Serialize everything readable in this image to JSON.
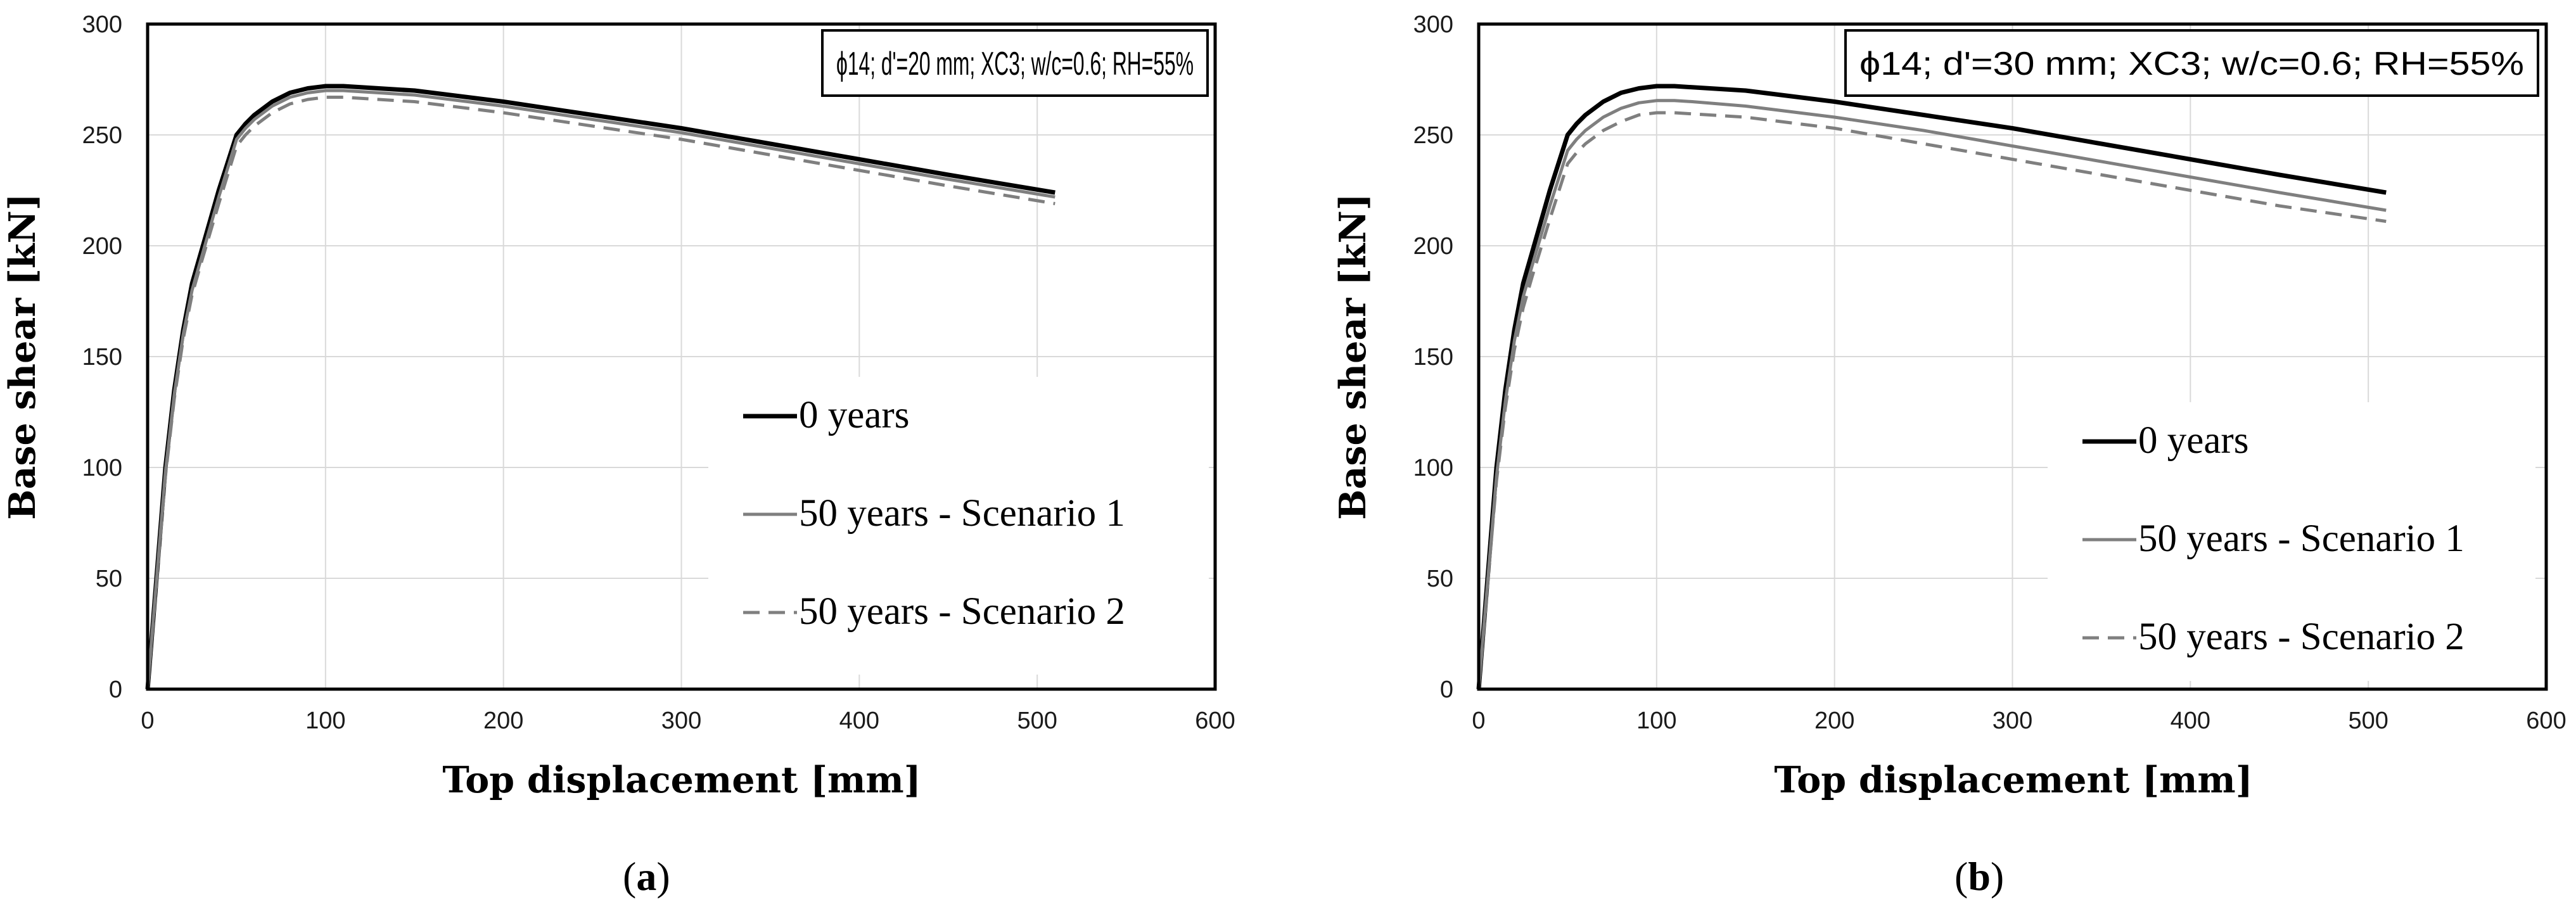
{
  "chart_data": [
    {
      "type": "line",
      "panel_label": "a",
      "annotation": "ϕ14; d'=20 mm; XC3; w/c=0.6; RH=55%",
      "xlabel": "Top displacement [mm]",
      "ylabel": "Base shear [kN]",
      "xlim": [
        0,
        600
      ],
      "ylim": [
        0,
        300
      ],
      "xticks": [
        0,
        100,
        200,
        300,
        400,
        500,
        600
      ],
      "yticks": [
        0,
        50,
        100,
        150,
        200,
        250,
        300
      ],
      "grid": true,
      "legend_position": "center-right",
      "series": [
        {
          "name": "0 years",
          "color": "#000000",
          "dash": "solid",
          "x": [
            0,
            5,
            10,
            15,
            20,
            25,
            30,
            40,
            50,
            55,
            60,
            70,
            80,
            90,
            100,
            110,
            120,
            150,
            200,
            250,
            300,
            350,
            400,
            450,
            510
          ],
          "y": [
            0,
            50,
            100,
            135,
            162,
            183,
            197,
            225,
            250,
            255,
            259,
            265,
            269,
            271,
            272,
            272,
            271.5,
            270,
            265,
            259,
            253,
            246,
            239,
            232,
            224
          ]
        },
        {
          "name": "50 years - Scenario 1",
          "color": "#7f7f7f",
          "dash": "solid",
          "x": [
            0,
            5,
            10,
            15,
            20,
            25,
            30,
            40,
            50,
            55,
            60,
            70,
            80,
            90,
            100,
            110,
            120,
            150,
            200,
            250,
            300,
            350,
            400,
            450,
            510
          ],
          "y": [
            0,
            49,
            98,
            133,
            160,
            180,
            194,
            222,
            248,
            253,
            257,
            263,
            267,
            269,
            270,
            270,
            269.5,
            268,
            263,
            257,
            251,
            244,
            237,
            230,
            222
          ]
        },
        {
          "name": "50 years - Scenario 2",
          "color": "#7f7f7f",
          "dash": "dashed",
          "x": [
            0,
            5,
            10,
            15,
            20,
            25,
            30,
            40,
            50,
            55,
            60,
            70,
            80,
            90,
            100,
            110,
            120,
            150,
            200,
            250,
            300,
            350,
            400,
            450,
            510
          ],
          "y": [
            0,
            48,
            96,
            131,
            158,
            178,
            192,
            219,
            245,
            250,
            254,
            260,
            264,
            266,
            267,
            267,
            266.5,
            265,
            260,
            254,
            248,
            241,
            234,
            227,
            219
          ]
        }
      ]
    },
    {
      "type": "line",
      "panel_label": "b",
      "annotation": "ϕ14; d'=30 mm; XC3; w/c=0.6; RH=55%",
      "xlabel": "Top displacement [mm]",
      "ylabel": "Base shear [kN]",
      "xlim": [
        0,
        600
      ],
      "ylim": [
        0,
        300
      ],
      "xticks": [
        0,
        100,
        200,
        300,
        400,
        500,
        600
      ],
      "yticks": [
        0,
        50,
        100,
        150,
        200,
        250,
        300
      ],
      "grid": true,
      "legend_position": "center-right",
      "series": [
        {
          "name": "0 years",
          "color": "#000000",
          "dash": "solid",
          "x": [
            0,
            5,
            10,
            15,
            20,
            25,
            30,
            40,
            50,
            55,
            60,
            70,
            80,
            90,
            100,
            110,
            120,
            150,
            200,
            250,
            300,
            350,
            400,
            450,
            510
          ],
          "y": [
            0,
            50,
            100,
            135,
            162,
            183,
            197,
            225,
            250,
            255,
            259,
            265,
            269,
            271,
            272,
            272,
            271.5,
            270,
            265,
            259,
            253,
            246,
            239,
            232,
            224
          ]
        },
        {
          "name": "50 years - Scenario 1",
          "color": "#7f7f7f",
          "dash": "solid",
          "x": [
            0,
            5,
            10,
            15,
            20,
            25,
            30,
            40,
            50,
            55,
            60,
            70,
            80,
            90,
            100,
            110,
            120,
            150,
            200,
            250,
            300,
            350,
            400,
            450,
            510
          ],
          "y": [
            0,
            48,
            96,
            130,
            157,
            177,
            191,
            218,
            243,
            248,
            252,
            258,
            262,
            264.5,
            265.5,
            265.5,
            265,
            263,
            258,
            252,
            245,
            238,
            231,
            224,
            216
          ]
        },
        {
          "name": "50 years - Scenario 2",
          "color": "#7f7f7f",
          "dash": "dashed",
          "x": [
            0,
            5,
            10,
            15,
            20,
            25,
            30,
            40,
            50,
            55,
            60,
            70,
            80,
            90,
            100,
            110,
            120,
            150,
            200,
            250,
            300,
            350,
            400,
            450,
            510
          ],
          "y": [
            0,
            47,
            94,
            127,
            153,
            172,
            186,
            212,
            237,
            242,
            246,
            252,
            256,
            259,
            260,
            260,
            259.5,
            258,
            253,
            246,
            239,
            232,
            225,
            218,
            211
          ]
        }
      ]
    }
  ]
}
